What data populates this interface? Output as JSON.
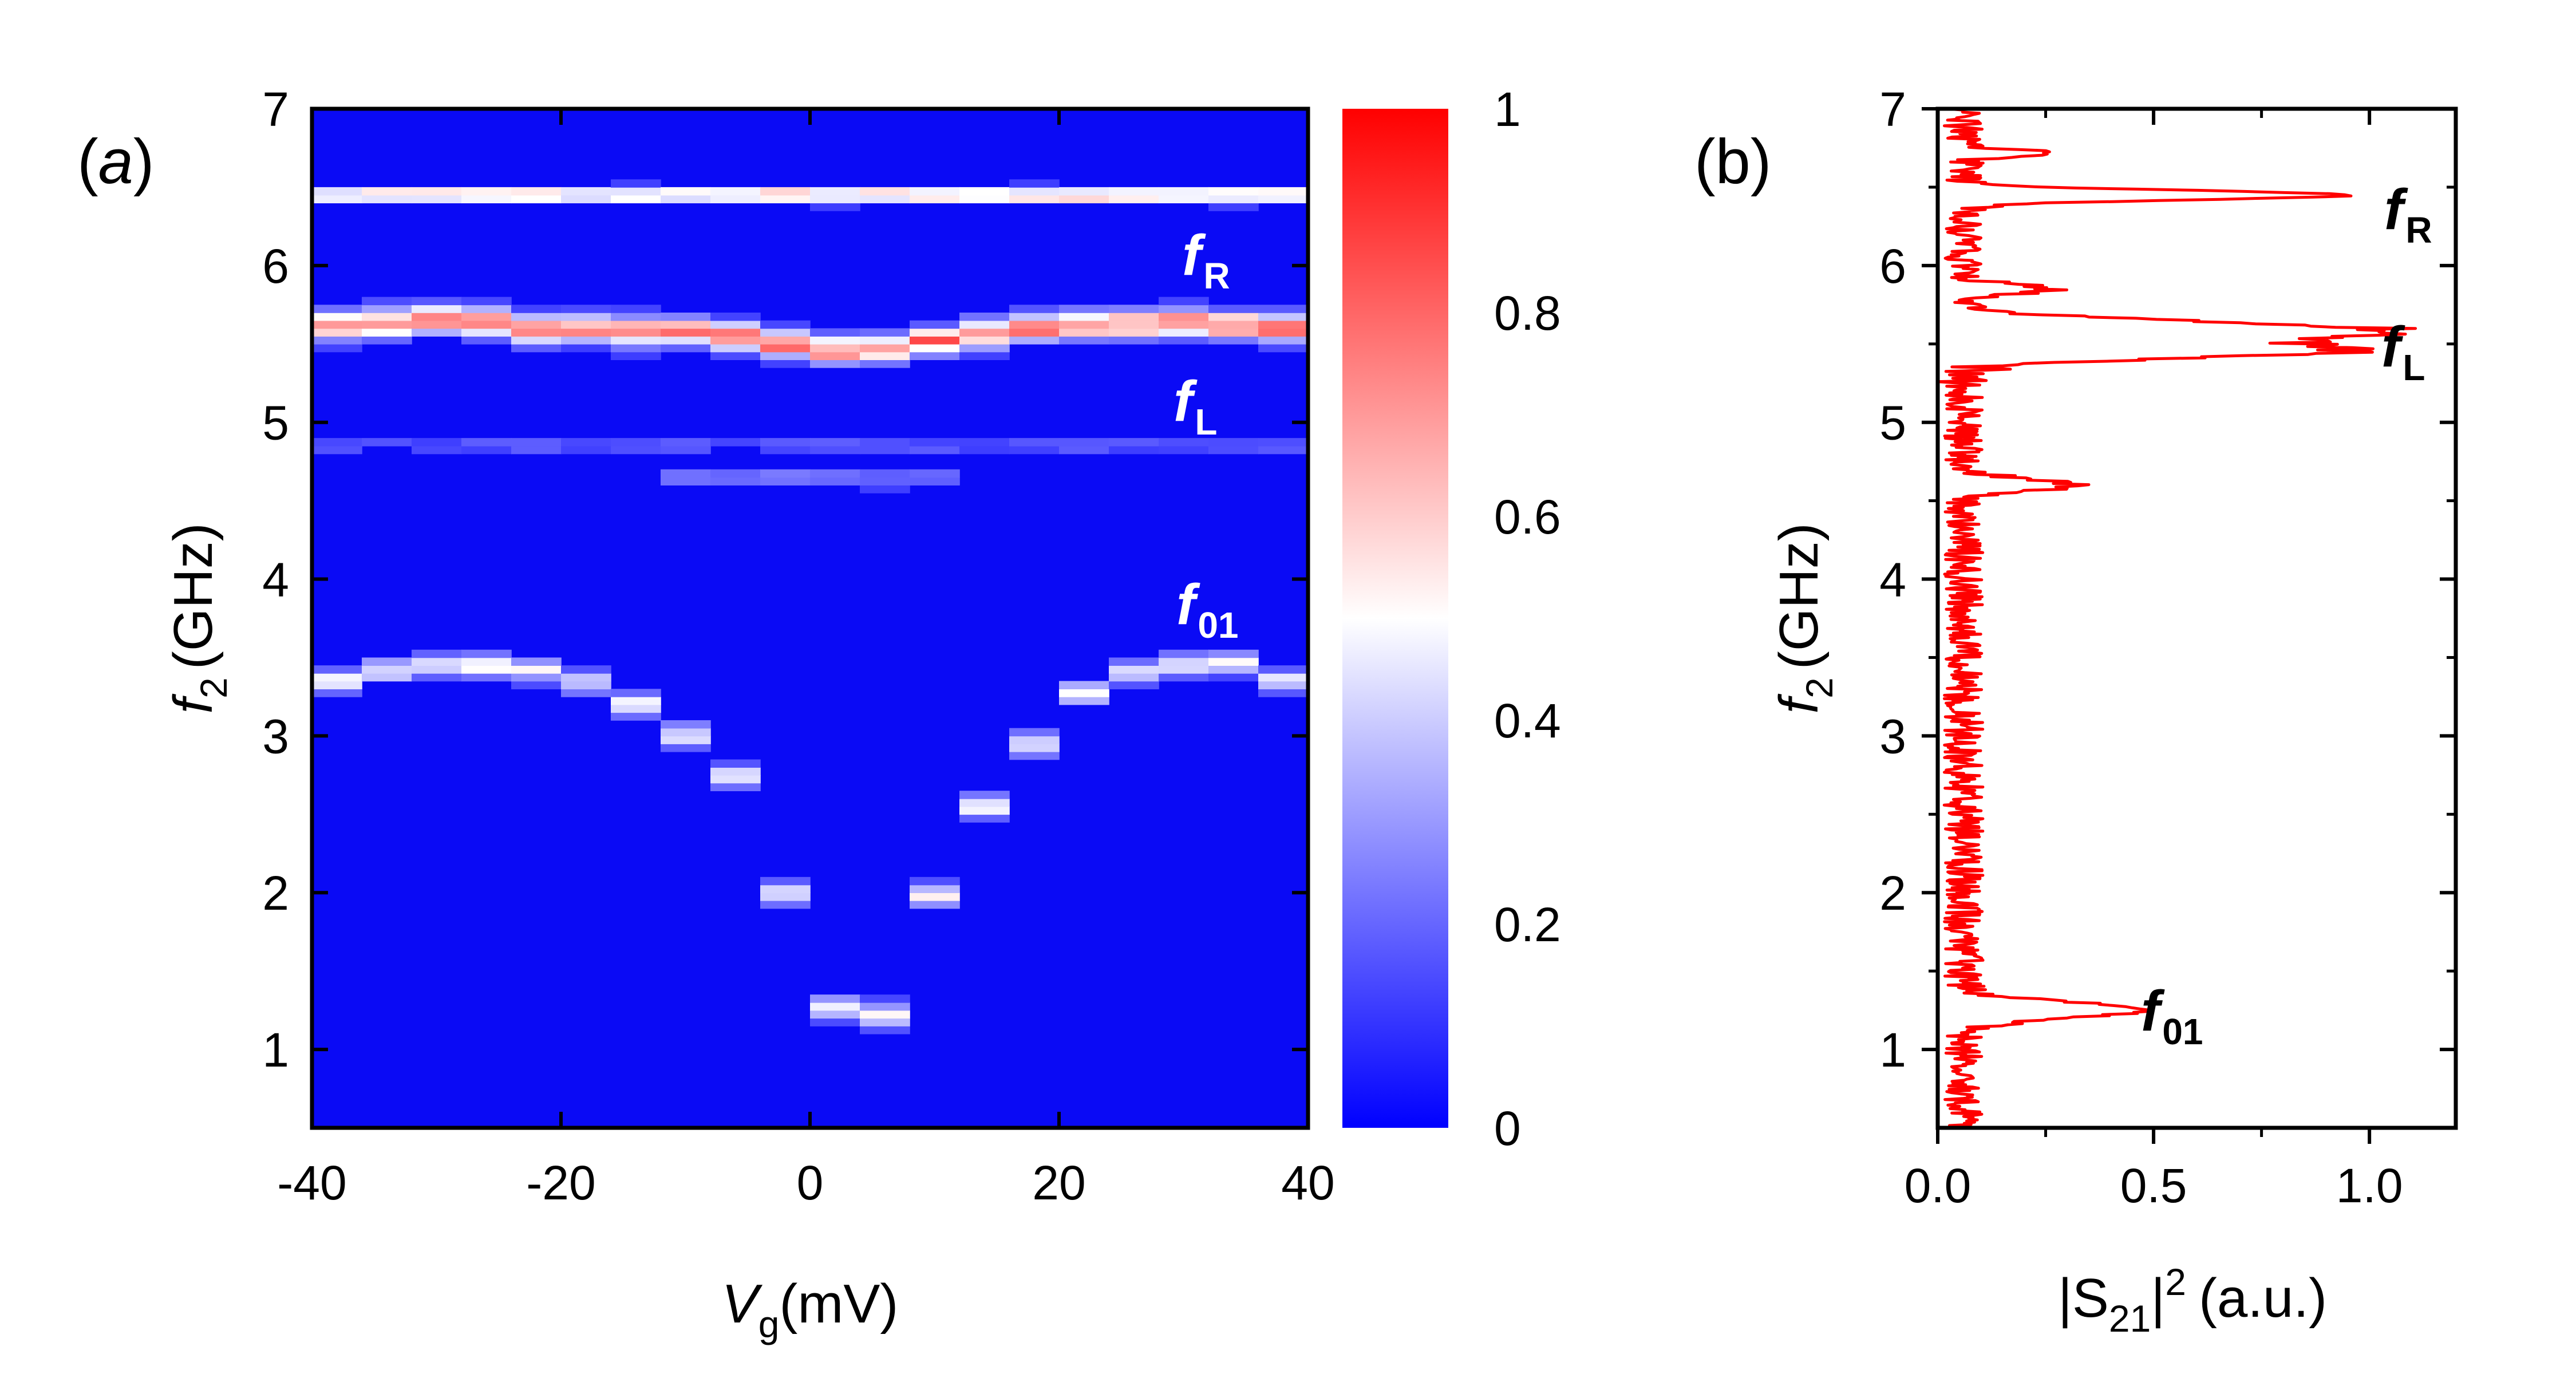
{
  "chart_data": [
    {
      "type": "heatmap",
      "panel_label": "a",
      "xlabel": {
        "symbol": "V",
        "subscript": "g",
        "unit": "(mV)"
      },
      "ylabel": {
        "symbol": "f",
        "subscript": "2",
        "unit": "(GHz)"
      },
      "xlim": [
        -40,
        40
      ],
      "ylim": [
        0.5,
        7
      ],
      "xticks": [
        "-40",
        "-20",
        "0",
        "20",
        "40"
      ],
      "yticks": [
        "1",
        "2",
        "3",
        "4",
        "5",
        "6",
        "7"
      ],
      "colorbar": {
        "range": [
          0,
          1
        ],
        "ticks": [
          "0",
          "0.2",
          "0.4",
          "0.6",
          "0.8",
          "1"
        ],
        "colors": [
          "#0000ff",
          "#ffffff",
          "#ff0000"
        ]
      },
      "vg_columns": [
        -38,
        -34,
        -30,
        -26,
        -22,
        -18,
        -14,
        -10,
        -6,
        -2,
        2,
        6,
        10,
        14,
        18,
        22,
        26,
        30,
        34,
        38
      ],
      "resonator_f_GHz": 6.45,
      "l_mode_f_GHz": [
        5.62,
        5.64,
        5.66,
        5.64,
        5.6,
        5.6,
        5.58,
        5.58,
        5.55,
        5.5,
        5.46,
        5.47,
        5.52,
        5.57,
        5.6,
        5.62,
        5.63,
        5.64,
        5.62,
        5.6
      ],
      "f01_GHz": [
        3.35,
        3.42,
        3.45,
        3.45,
        3.42,
        3.35,
        3.2,
        3.0,
        2.75,
        2.0,
        1.27,
        1.22,
        1.98,
        2.55,
        2.95,
        3.28,
        3.4,
        3.45,
        3.47,
        3.35
      ],
      "annotations": [
        {
          "text": "f",
          "subscript": "R",
          "f_GHz": 6.05
        },
        {
          "text": "f",
          "subscript": "L",
          "f_GHz": 5.15
        },
        {
          "text": "f",
          "subscript": "01",
          "f_GHz": 3.75
        }
      ]
    },
    {
      "type": "line",
      "panel_label": "b",
      "xlabel": {
        "prefix": "|S",
        "subscript": "21",
        "suffix": "|",
        "superscript": "2",
        "unit": "(a.u.)"
      },
      "ylabel": {
        "symbol": "f",
        "subscript": "2",
        "unit": "(GHz)"
      },
      "xlim": [
        0,
        1.2
      ],
      "ylim": [
        0.5,
        7
      ],
      "xticks": [
        "0.0",
        "0.5",
        "1.0"
      ],
      "yticks": [
        "1",
        "2",
        "3",
        "4",
        "5",
        "6",
        "7"
      ],
      "series": [
        {
          "color": "#ff0000",
          "peaks": [
            {
              "f_GHz": 6.45,
              "amplitude": 0.9,
              "width_GHz": 0.03
            },
            {
              "f_GHz": 6.72,
              "amplitude": 0.22,
              "width_GHz": 0.02
            },
            {
              "f_GHz": 5.58,
              "amplitude": 1.0,
              "width_GHz": 0.06
            },
            {
              "f_GHz": 5.45,
              "amplitude": 0.78,
              "width_GHz": 0.04
            },
            {
              "f_GHz": 5.85,
              "amplitude": 0.2,
              "width_GHz": 0.03
            },
            {
              "f_GHz": 4.6,
              "amplitude": 0.25,
              "width_GHz": 0.04
            },
            {
              "f_GHz": 1.25,
              "amplitude": 0.42,
              "width_GHz": 0.05
            }
          ],
          "baseline": 0.06
        }
      ],
      "annotations": [
        {
          "text": "f",
          "subscript": "R",
          "f_GHz": 6.4
        },
        {
          "text": "f",
          "subscript": "L",
          "f_GHz": 5.35
        },
        {
          "text": "f",
          "subscript": "01",
          "f_GHz": 1.1
        }
      ]
    }
  ]
}
